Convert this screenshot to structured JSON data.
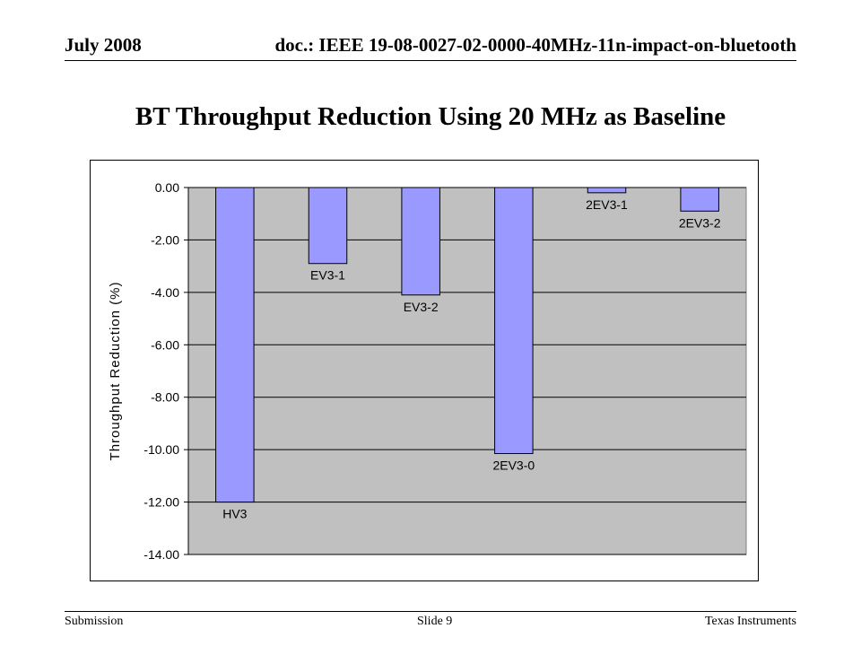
{
  "header": {
    "date": "July 2008",
    "doc": "doc.: IEEE 19-08-0027-02-0000-40MHz-11n-impact-on-bluetooth"
  },
  "slide": {
    "title": "BT Throughput Reduction Using 20 MHz as Baseline"
  },
  "footer": {
    "left": "Submission",
    "center": "Slide 9",
    "right": "Texas Instruments"
  },
  "chart_data": {
    "type": "bar",
    "categories": [
      "HV3",
      "EV3-1",
      "EV3-2",
      "2EV3-0",
      "2EV3-1",
      "2EV3-2"
    ],
    "values": [
      -12.0,
      -2.9,
      -4.1,
      -10.15,
      -0.2,
      -0.9
    ],
    "ylabel": "Throughput Reduction (%)",
    "ylim": [
      -14,
      0
    ],
    "yticks": [
      0,
      -2,
      -4,
      -6,
      -8,
      -10,
      -12,
      -14
    ],
    "ytick_labels": [
      "0.00",
      "-2.00",
      "-4.00",
      "-6.00",
      "-8.00",
      "-10.00",
      "-12.00",
      "-14.00"
    ],
    "grid": true,
    "legend": "none",
    "colors": {
      "bar_fill": "#9999FF",
      "plot_bg": "#C0C0C0",
      "gridline": "#000000"
    }
  }
}
